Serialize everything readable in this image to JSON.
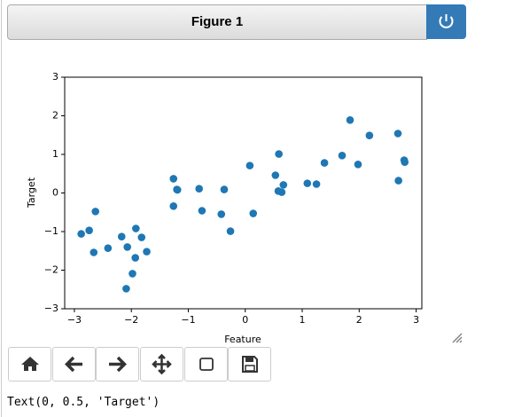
{
  "header": {
    "title": "Figure 1"
  },
  "chart_data": {
    "type": "scatter",
    "x_label": "Feature",
    "y_label": "Target",
    "color": "#1f77b4",
    "x": [
      -2.88,
      -2.74,
      -2.66,
      -2.63,
      -2.41,
      -2.17,
      -2.07,
      -2.09,
      -1.98,
      -1.93,
      -1.92,
      -1.82,
      -1.73,
      -1.26,
      -1.2,
      -1.19,
      -1.26,
      -0.81,
      -0.76,
      -0.42,
      -0.37,
      -0.26,
      0.08,
      0.14,
      0.53,
      0.59,
      0.58,
      0.64,
      0.67,
      1.09,
      1.25,
      1.39,
      1.7,
      1.84,
      1.98,
      2.18,
      2.68,
      2.69,
      2.79,
      2.8
    ],
    "values": [
      -1.06,
      -0.97,
      -1.54,
      -0.48,
      -1.43,
      -1.13,
      -1.4,
      -2.48,
      -2.09,
      -1.68,
      -0.92,
      -1.15,
      -1.52,
      0.37,
      0.09,
      0.08,
      -0.34,
      0.11,
      -0.46,
      -0.55,
      0.09,
      -0.99,
      0.71,
      -0.53,
      0.46,
      1.01,
      0.05,
      0.02,
      0.21,
      0.25,
      0.23,
      0.78,
      0.97,
      1.89,
      0.74,
      1.49,
      1.54,
      0.32,
      0.85,
      0.8
    ],
    "xlim": [
      -3.17,
      3.1
    ],
    "ylim": [
      -3,
      3
    ],
    "xticks": [
      {
        "value": -3,
        "label": "−3"
      },
      {
        "value": -2,
        "label": "−2"
      },
      {
        "value": -1,
        "label": "−1"
      },
      0,
      1,
      2,
      3
    ],
    "yticks": [
      {
        "value": -3,
        "label": "−3"
      },
      {
        "value": -2,
        "label": "−2"
      },
      {
        "value": -1,
        "label": "−1"
      },
      0,
      1,
      2,
      3
    ]
  },
  "output": {
    "text": "Text(0, 0.5, 'Target')"
  }
}
